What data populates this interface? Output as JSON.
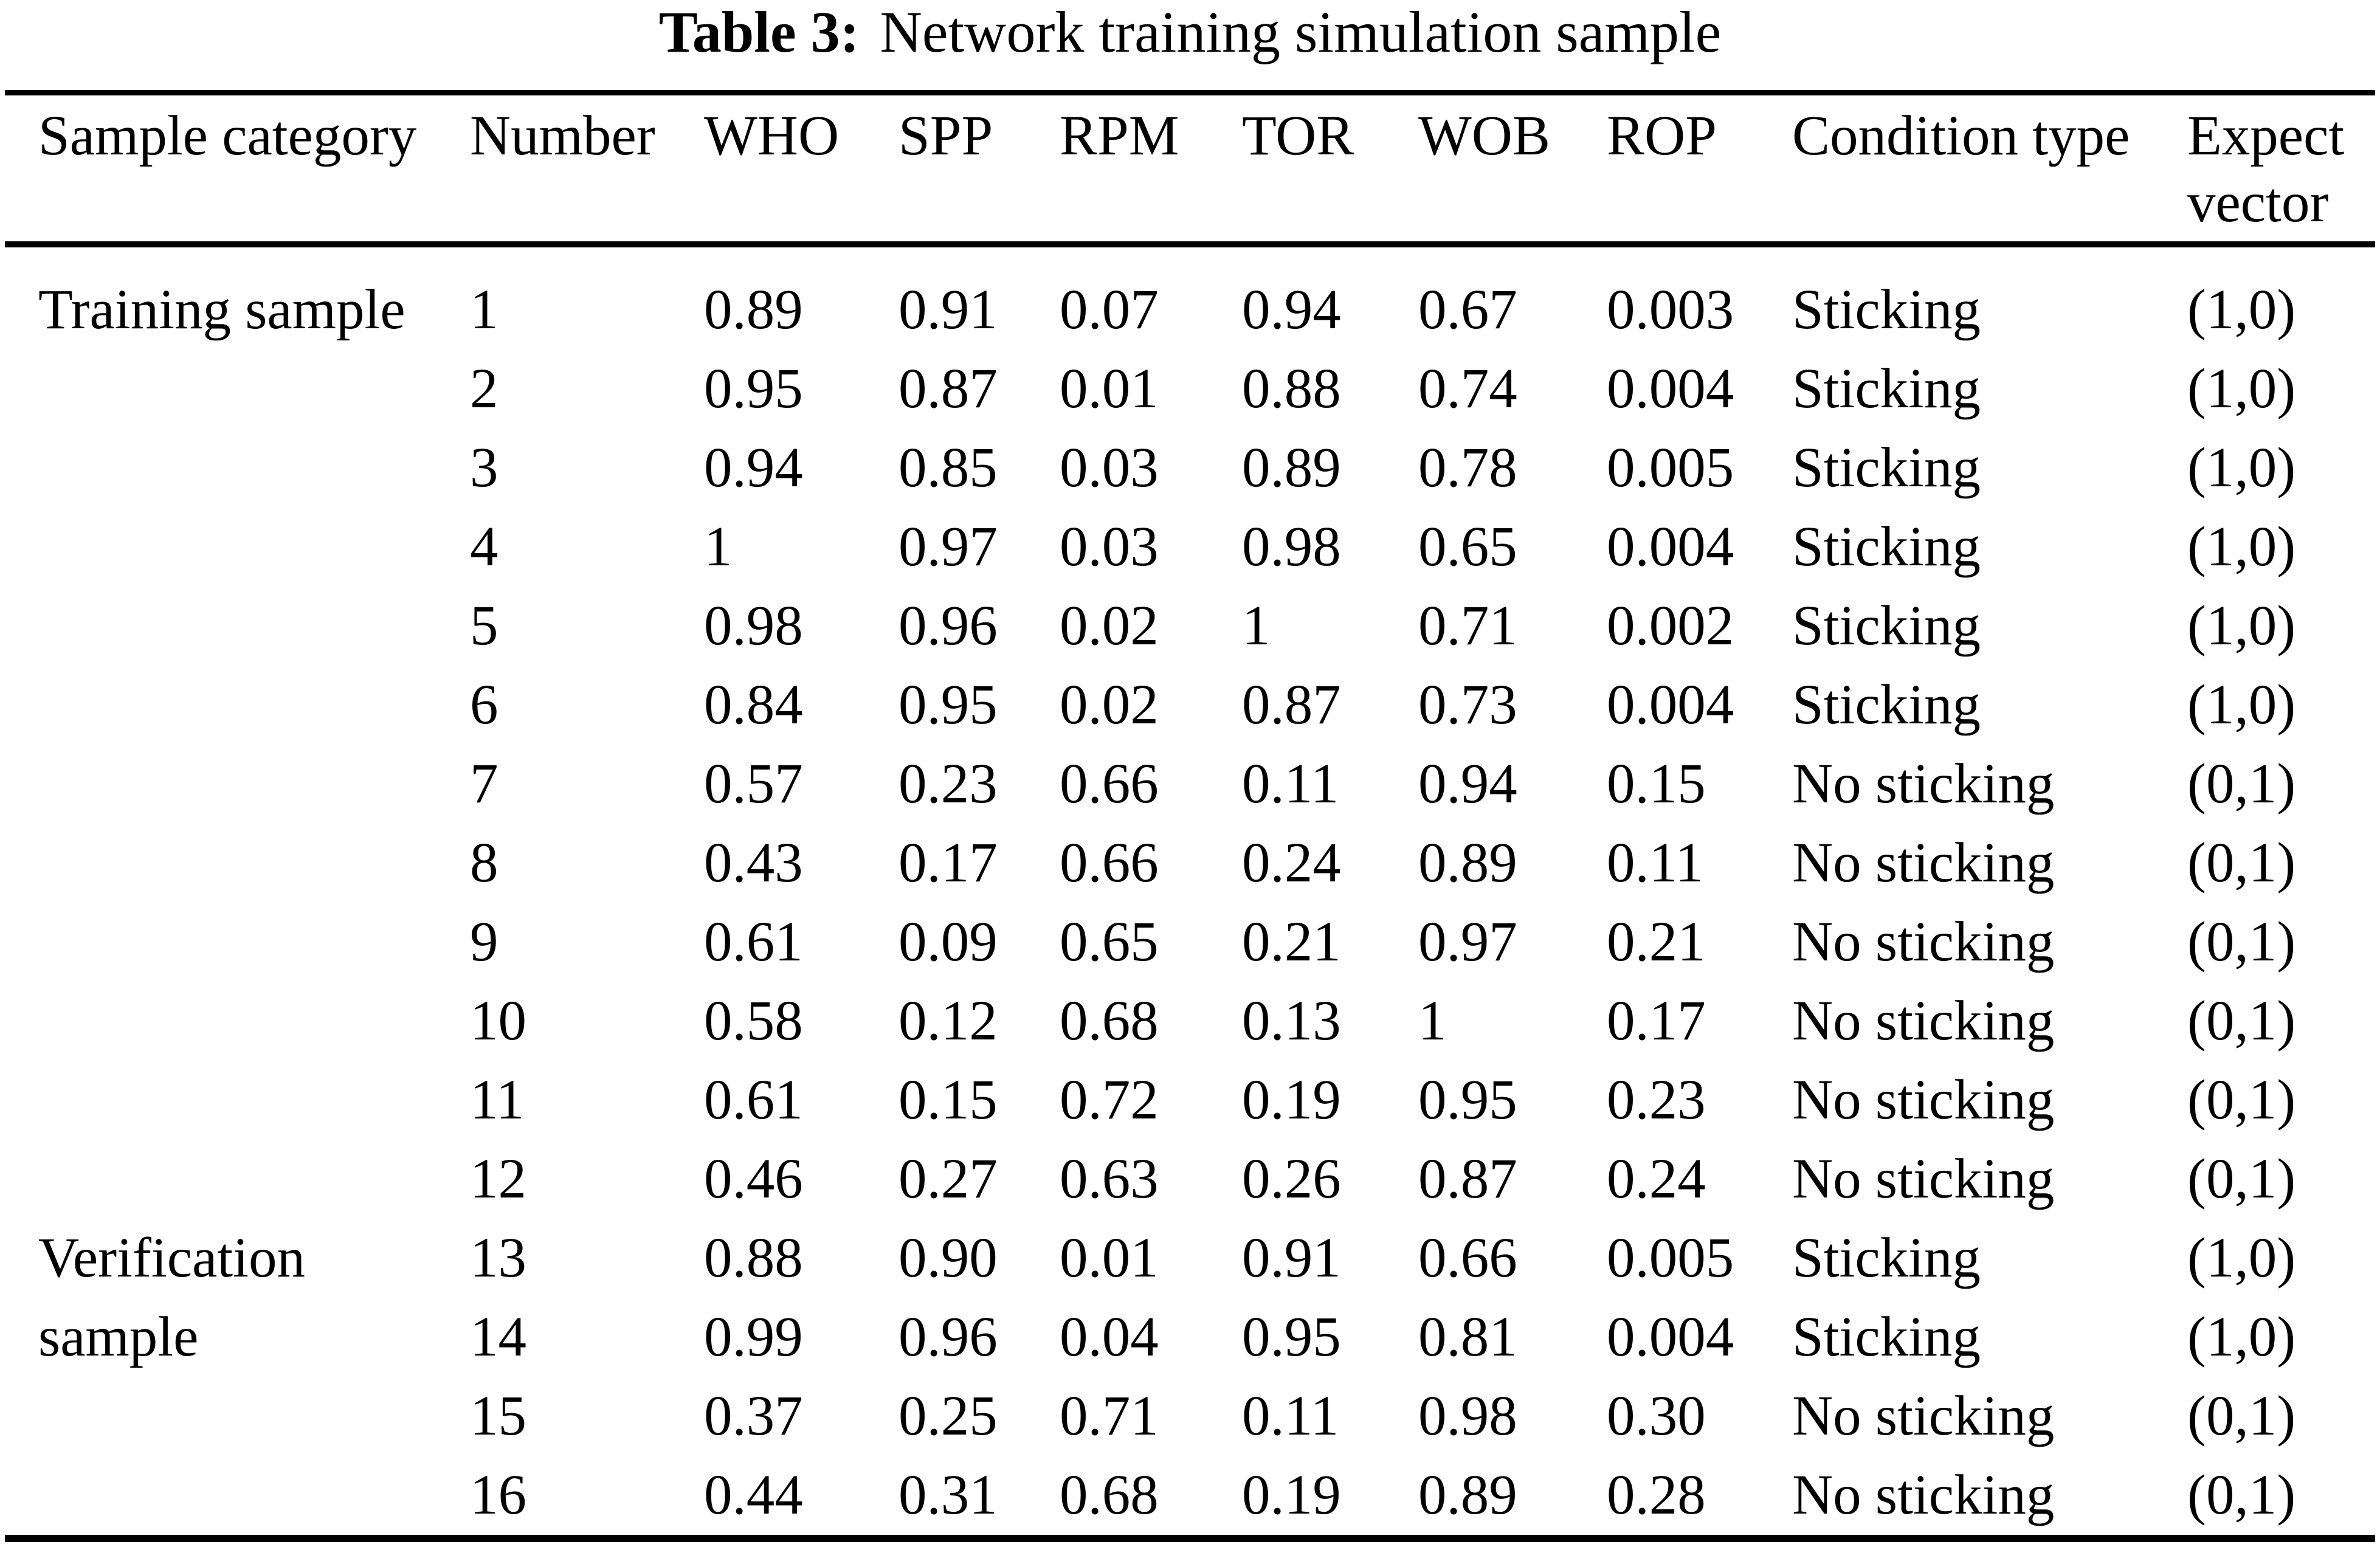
{
  "caption": {
    "label": "Table 3:",
    "text": "Network training simulation sample"
  },
  "table": {
    "headers": [
      "Sample category",
      "Number",
      "WHO",
      "SPP",
      "RPM",
      "TOR",
      "WOB",
      "ROP",
      "Condition type",
      "Expect vector"
    ],
    "groups": [
      {
        "category": "Training sample",
        "rows": [
          {
            "number": "1",
            "who": "0.89",
            "spp": "0.91",
            "rpm": "0.07",
            "tor": "0.94",
            "wob": "0.67",
            "rop": "0.003",
            "condition": "Sticking",
            "expect": "(1,0)"
          },
          {
            "number": "2",
            "who": "0.95",
            "spp": "0.87",
            "rpm": "0.01",
            "tor": "0.88",
            "wob": "0.74",
            "rop": "0.004",
            "condition": "Sticking",
            "expect": "(1,0)"
          },
          {
            "number": "3",
            "who": "0.94",
            "spp": "0.85",
            "rpm": "0.03",
            "tor": "0.89",
            "wob": "0.78",
            "rop": "0.005",
            "condition": "Sticking",
            "expect": "(1,0)"
          },
          {
            "number": "4",
            "who": "1",
            "spp": "0.97",
            "rpm": "0.03",
            "tor": "0.98",
            "wob": "0.65",
            "rop": "0.004",
            "condition": "Sticking",
            "expect": "(1,0)"
          },
          {
            "number": "5",
            "who": "0.98",
            "spp": "0.96",
            "rpm": "0.02",
            "tor": "1",
            "wob": "0.71",
            "rop": "0.002",
            "condition": "Sticking",
            "expect": "(1,0)"
          },
          {
            "number": "6",
            "who": "0.84",
            "spp": "0.95",
            "rpm": "0.02",
            "tor": "0.87",
            "wob": "0.73",
            "rop": "0.004",
            "condition": "Sticking",
            "expect": "(1,0)"
          },
          {
            "number": "7",
            "who": "0.57",
            "spp": "0.23",
            "rpm": "0.66",
            "tor": "0.11",
            "wob": "0.94",
            "rop": "0.15",
            "condition": "No sticking",
            "expect": "(0,1)"
          },
          {
            "number": "8",
            "who": "0.43",
            "spp": "0.17",
            "rpm": "0.66",
            "tor": "0.24",
            "wob": "0.89",
            "rop": "0.11",
            "condition": "No sticking",
            "expect": "(0,1)"
          },
          {
            "number": "9",
            "who": "0.61",
            "spp": "0.09",
            "rpm": "0.65",
            "tor": "0.21",
            "wob": "0.97",
            "rop": "0.21",
            "condition": "No sticking",
            "expect": "(0,1)"
          },
          {
            "number": "10",
            "who": "0.58",
            "spp": "0.12",
            "rpm": "0.68",
            "tor": "0.13",
            "wob": "1",
            "rop": "0.17",
            "condition": "No sticking",
            "expect": "(0,1)"
          },
          {
            "number": "11",
            "who": "0.61",
            "spp": "0.15",
            "rpm": "0.72",
            "tor": "0.19",
            "wob": "0.95",
            "rop": "0.23",
            "condition": "No sticking",
            "expect": "(0,1)"
          },
          {
            "number": "12",
            "who": "0.46",
            "spp": "0.27",
            "rpm": "0.63",
            "tor": "0.26",
            "wob": "0.87",
            "rop": "0.24",
            "condition": "No sticking",
            "expect": "(0,1)"
          }
        ]
      },
      {
        "category": "Verification sample",
        "rows": [
          {
            "number": "13",
            "who": "0.88",
            "spp": "0.90",
            "rpm": "0.01",
            "tor": "0.91",
            "wob": "0.66",
            "rop": "0.005",
            "condition": "Sticking",
            "expect": "(1,0)"
          },
          {
            "number": "14",
            "who": "0.99",
            "spp": "0.96",
            "rpm": "0.04",
            "tor": "0.95",
            "wob": "0.81",
            "rop": "0.004",
            "condition": "Sticking",
            "expect": "(1,0)"
          },
          {
            "number": "15",
            "who": "0.37",
            "spp": "0.25",
            "rpm": "0.71",
            "tor": "0.11",
            "wob": "0.98",
            "rop": "0.30",
            "condition": "No sticking",
            "expect": "(0,1)"
          },
          {
            "number": "16",
            "who": "0.44",
            "spp": "0.31",
            "rpm": "0.68",
            "tor": "0.19",
            "wob": "0.89",
            "rop": "0.28",
            "condition": "No sticking",
            "expect": "(0,1)"
          }
        ]
      }
    ]
  }
}
